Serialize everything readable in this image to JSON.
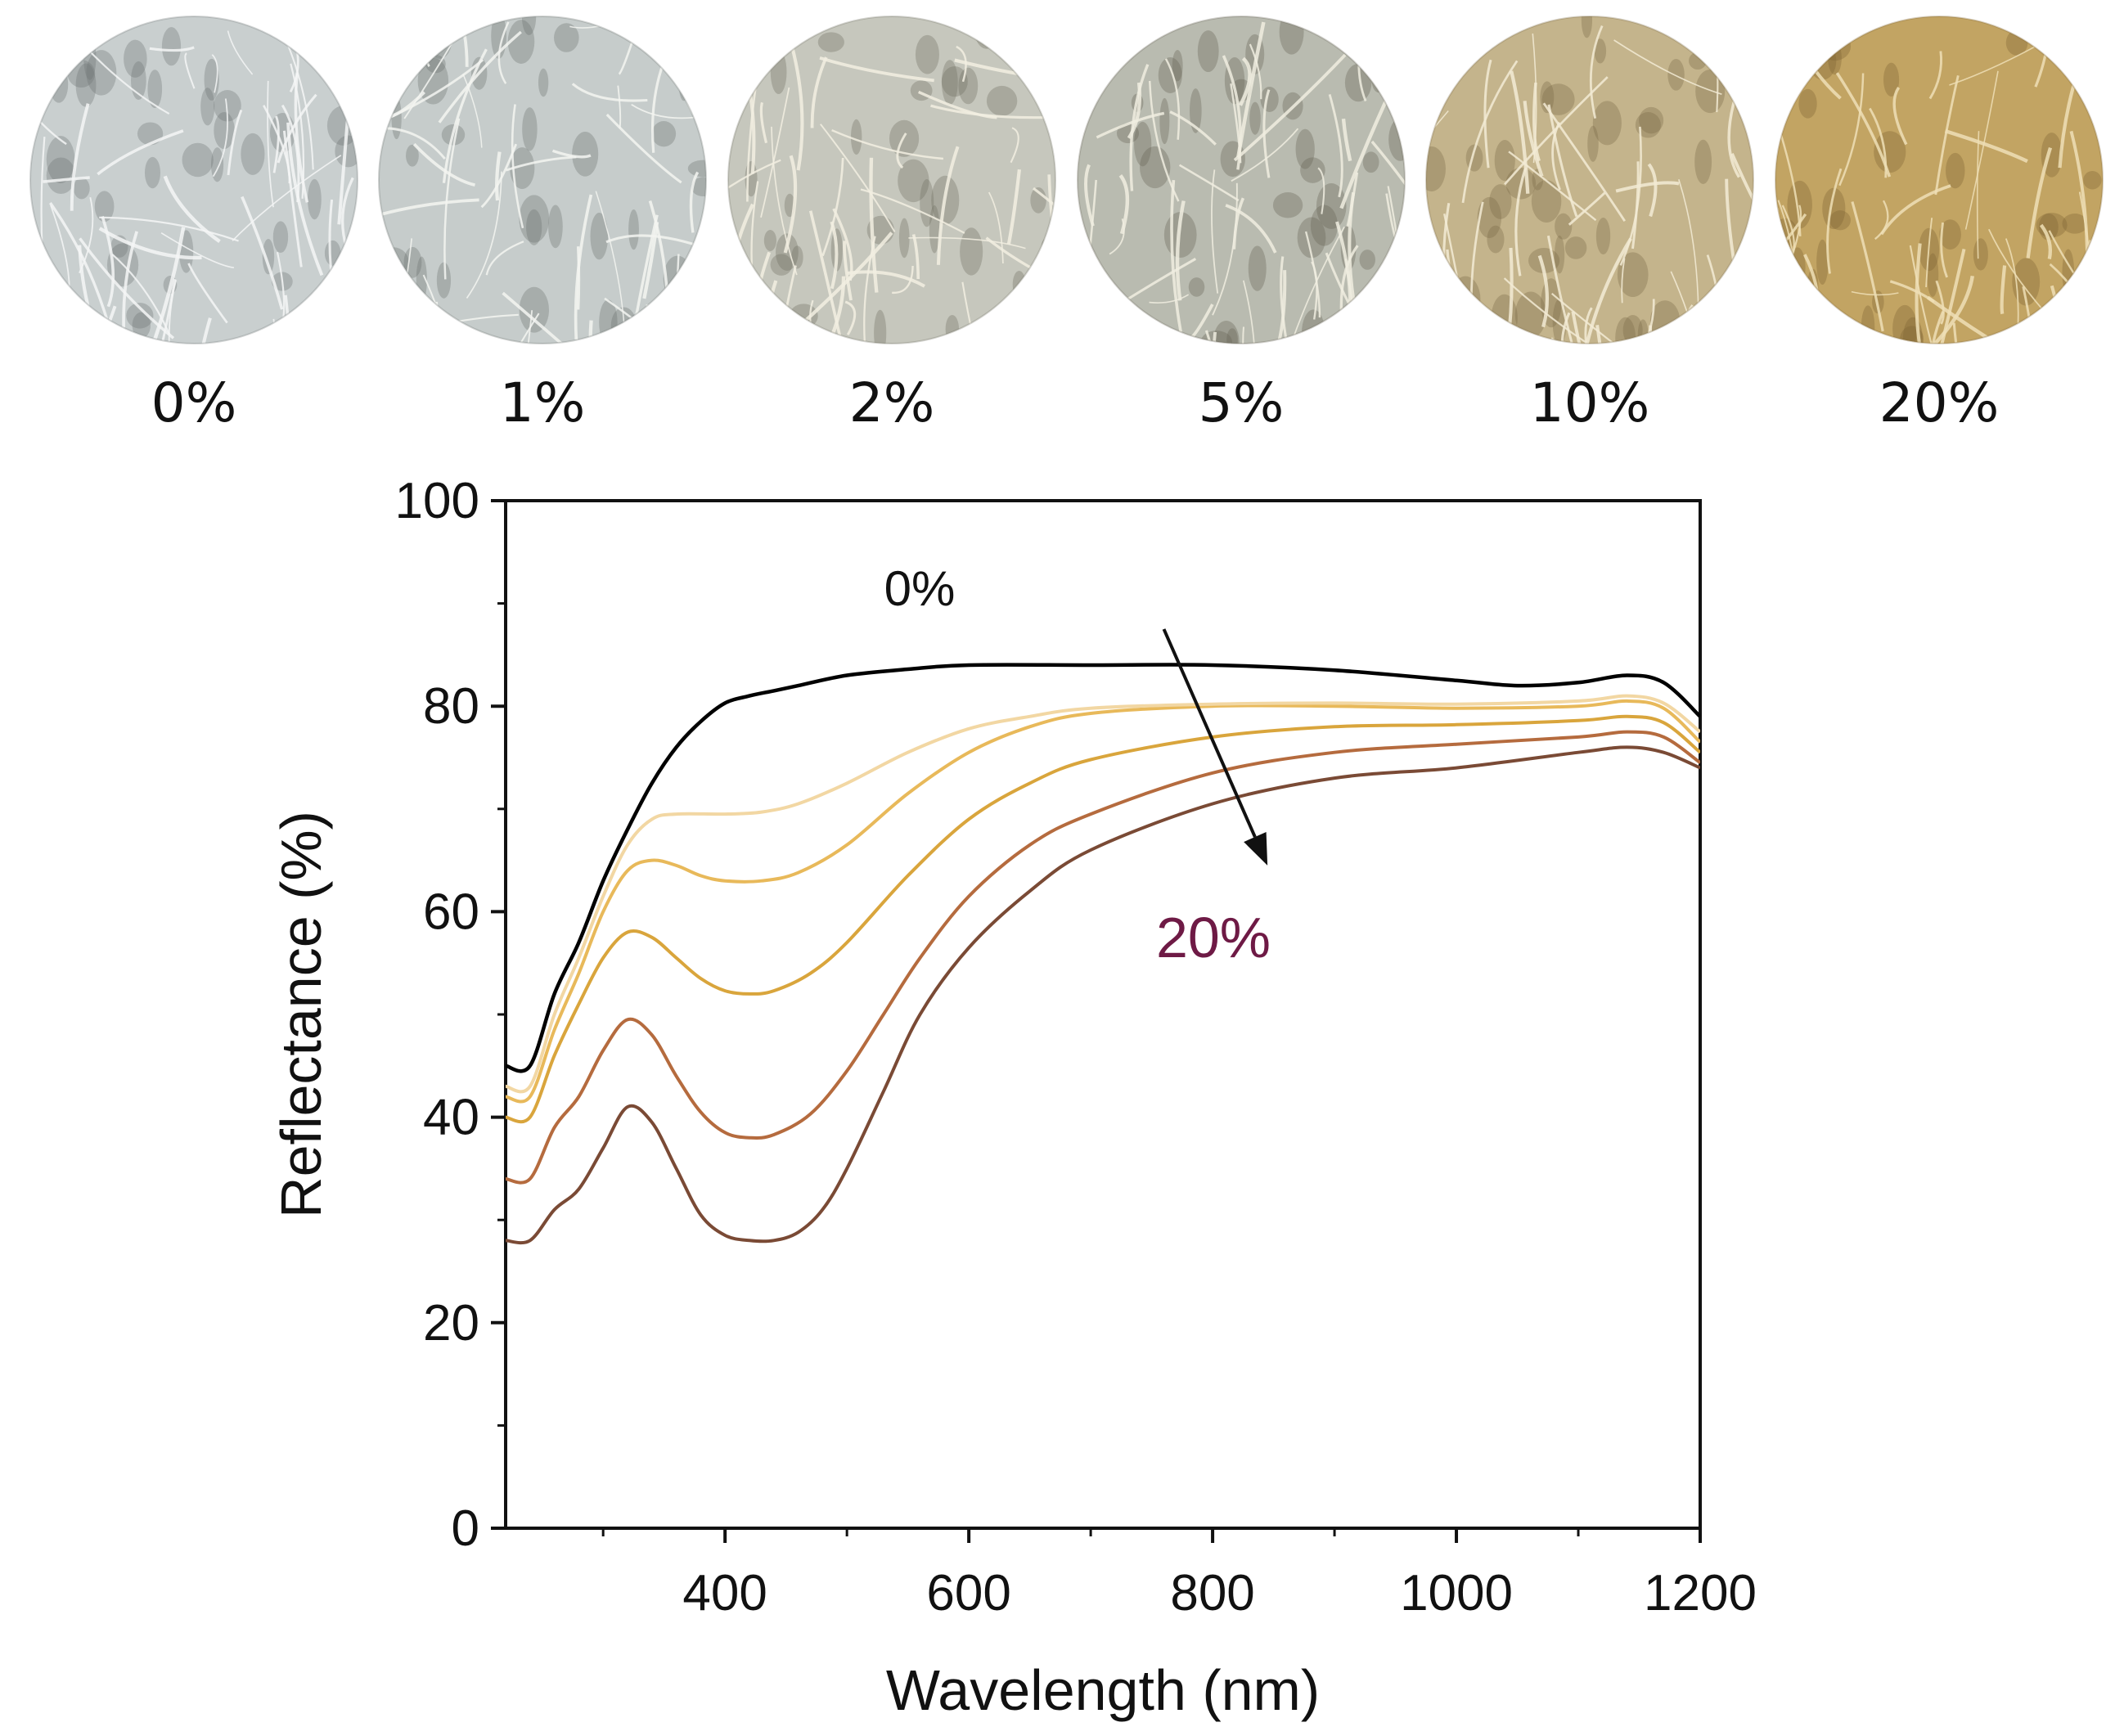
{
  "samples": [
    {
      "label": "0%",
      "base": "#c9cfcf",
      "fiber": "#f4f6f6",
      "shade": "#6f7676"
    },
    {
      "label": "1%",
      "base": "#c6cccb",
      "fiber": "#f3f4f1",
      "shade": "#6d7370"
    },
    {
      "label": "2%",
      "base": "#c6c7bd",
      "fiber": "#f2efe2",
      "shade": "#6f6f62"
    },
    {
      "label": "5%",
      "base": "#b9bbb0",
      "fiber": "#f0ede0",
      "shade": "#666555"
    },
    {
      "label": "10%",
      "base": "#c4b48c",
      "fiber": "#f3ebd5",
      "shade": "#7a6a47"
    },
    {
      "label": "20%",
      "base": "#c2a463",
      "fiber": "#efdfb6",
      "shade": "#7e6433"
    }
  ],
  "chart_data": {
    "type": "line",
    "xlabel": "Wavelength (nm)",
    "ylabel": "Reflectance (%)",
    "xlim": [
      220,
      1200
    ],
    "ylim": [
      0,
      100
    ],
    "xticks": [
      400,
      600,
      800,
      1000,
      1200
    ],
    "yticks": [
      0,
      20,
      40,
      60,
      80,
      100
    ],
    "grid": false,
    "annotations": {
      "start_label": "0%",
      "end_label": "20%",
      "start_color": "#111111",
      "end_color": "#6e1a45",
      "arrow_from": {
        "x": 760,
        "y": 87.5
      },
      "arrow_to": {
        "x": 845,
        "y": 64.5
      }
    },
    "series": [
      {
        "name": "0%",
        "color": "#000000",
        "x": [
          220,
          240,
          260,
          280,
          300,
          320,
          340,
          360,
          380,
          400,
          420,
          440,
          460,
          500,
          550,
          600,
          700,
          800,
          900,
          1000,
          1050,
          1100,
          1140,
          1170,
          1200
        ],
        "y": [
          45,
          45,
          52,
          57,
          63,
          68,
          72.5,
          76,
          78.5,
          80.3,
          81,
          81.5,
          82,
          83,
          83.6,
          84,
          84,
          84,
          83.5,
          82.5,
          82,
          82.3,
          83,
          82.3,
          79
        ]
      },
      {
        "name": "1%",
        "color": "#f2d7a3",
        "x": [
          220,
          240,
          260,
          280,
          300,
          320,
          340,
          360,
          400,
          430,
          460,
          500,
          550,
          600,
          650,
          700,
          800,
          900,
          1000,
          1100,
          1140,
          1170,
          1200
        ],
        "y": [
          43,
          43,
          50,
          55.5,
          61.5,
          66.5,
          69,
          69.5,
          69.5,
          69.7,
          70.5,
          72.5,
          75.5,
          77.8,
          79,
          79.8,
          80.2,
          80.3,
          80.2,
          80.5,
          81,
          80.3,
          77.5
        ]
      },
      {
        "name": "2%",
        "color": "#e8b95a",
        "x": [
          220,
          240,
          260,
          280,
          300,
          320,
          340,
          360,
          380,
          400,
          430,
          460,
          500,
          550,
          600,
          650,
          700,
          800,
          900,
          1000,
          1100,
          1140,
          1170,
          1200
        ],
        "y": [
          42,
          42,
          48.5,
          54,
          60,
          64,
          65,
          64.5,
          63.5,
          63,
          63,
          63.8,
          66.5,
          71.5,
          75.5,
          78,
          79.3,
          80,
          80,
          79.8,
          80,
          80.5,
          79.8,
          76.5
        ]
      },
      {
        "name": "5%",
        "color": "#d9a53c",
        "x": [
          220,
          240,
          260,
          280,
          300,
          320,
          340,
          360,
          380,
          400,
          420,
          440,
          470,
          500,
          550,
          600,
          650,
          700,
          800,
          900,
          1000,
          1100,
          1140,
          1170,
          1200
        ],
        "y": [
          40,
          40,
          46,
          51,
          55.5,
          58,
          57.5,
          55.5,
          53.5,
          52.3,
          52,
          52.3,
          54,
          57,
          63.5,
          69,
          72.5,
          74.8,
          77,
          78,
          78.2,
          78.6,
          79,
          78.4,
          75.5
        ]
      },
      {
        "name": "10%",
        "color": "#b56b3e",
        "x": [
          220,
          240,
          260,
          280,
          300,
          320,
          340,
          360,
          380,
          400,
          420,
          440,
          470,
          500,
          530,
          560,
          600,
          650,
          700,
          800,
          900,
          1000,
          1100,
          1140,
          1170,
          1200
        ],
        "y": [
          34,
          34,
          39,
          42,
          46.5,
          49.5,
          48,
          44,
          40.5,
          38.5,
          38,
          38.3,
          40.3,
          44.5,
          50,
          55.5,
          61.5,
          66.5,
          69.5,
          73.5,
          75.5,
          76.3,
          77,
          77.5,
          77,
          74.5
        ]
      },
      {
        "name": "20%",
        "color": "#7a4a35",
        "x": [
          220,
          240,
          260,
          280,
          300,
          320,
          340,
          360,
          380,
          400,
          420,
          440,
          460,
          480,
          500,
          530,
          560,
          600,
          650,
          700,
          800,
          900,
          1000,
          1100,
          1140,
          1170,
          1200
        ],
        "y": [
          28,
          28,
          31,
          33,
          37,
          41,
          39.5,
          35,
          30.5,
          28.5,
          28,
          28,
          28.8,
          31,
          35,
          42.5,
          50,
          56.5,
          62,
          66,
          70.5,
          73,
          74,
          75.5,
          76,
          75.5,
          74
        ]
      }
    ]
  }
}
